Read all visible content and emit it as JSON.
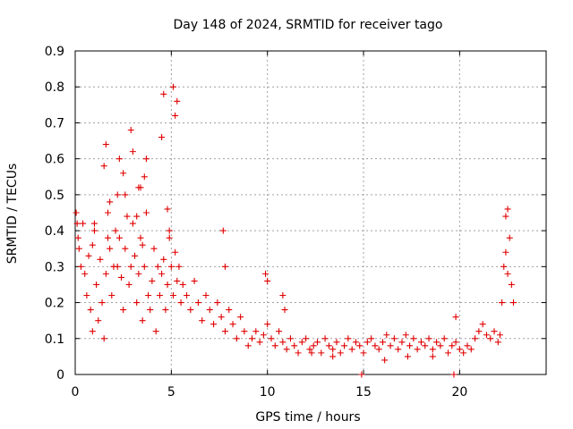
{
  "chart_data": {
    "type": "scatter",
    "title": "Day 148 of 2024, SRMTID for receiver tago",
    "xlabel": "GPS time / hours",
    "ylabel": "SRMTID / TECUs",
    "xlim": [
      0,
      24.5
    ],
    "ylim": [
      0,
      0.9
    ],
    "xticks": [
      0,
      5,
      10,
      15,
      20
    ],
    "yticks": [
      0,
      0.1,
      0.2,
      0.3,
      0.4,
      0.5,
      0.6,
      0.7,
      0.8,
      0.9
    ],
    "grid": true,
    "marker": "+",
    "color": "#e00000",
    "series": [
      {
        "name": "SRMTID",
        "x": [
          0.05,
          0.1,
          0.15,
          0.2,
          0.3,
          0.4,
          0.5,
          0.6,
          0.7,
          0.8,
          0.9,
          1.0,
          1.1,
          1.2,
          1.3,
          1.4,
          1.5,
          1.6,
          1.7,
          1.8,
          1.9,
          2.0,
          2.1,
          2.2,
          2.3,
          2.4,
          2.5,
          2.6,
          2.7,
          2.8,
          2.9,
          3.0,
          3.1,
          3.2,
          3.3,
          3.4,
          3.5,
          3.6,
          3.7,
          3.8,
          3.9,
          4.0,
          4.1,
          4.2,
          4.3,
          4.4,
          4.5,
          4.6,
          4.7,
          4.8,
          4.9,
          5.0,
          5.1,
          5.2,
          5.3,
          5.4,
          5.5,
          5.6,
          5.8,
          6.0,
          6.2,
          6.4,
          6.6,
          6.8,
          7.0,
          7.2,
          7.4,
          7.6,
          7.8,
          8.0,
          8.2,
          8.4,
          8.6,
          8.8,
          9.0,
          9.2,
          9.4,
          9.6,
          9.8,
          10.0,
          10.2,
          10.4,
          10.6,
          10.8,
          11.0,
          11.2,
          11.4,
          11.6,
          11.8,
          12.0,
          12.2,
          12.4,
          12.6,
          12.8,
          13.0,
          13.2,
          13.4,
          13.6,
          13.8,
          14.0,
          14.2,
          14.4,
          14.6,
          14.8,
          15.0,
          15.2,
          15.4,
          15.6,
          15.8,
          16.0,
          16.2,
          16.4,
          16.6,
          16.8,
          17.0,
          17.2,
          17.4,
          17.6,
          17.8,
          18.0,
          18.2,
          18.4,
          18.6,
          18.8,
          19.0,
          19.2,
          19.4,
          19.6,
          19.8,
          20.0,
          20.2,
          20.4,
          20.6,
          20.8,
          21.0,
          21.2,
          21.4,
          21.6,
          21.8,
          22.0,
          22.1,
          22.2,
          22.3,
          22.4,
          22.5,
          22.6,
          22.7,
          22.8,
          2.2,
          2.3,
          2.9,
          3.0,
          3.6,
          3.7,
          4.5,
          4.6,
          5.1,
          5.2,
          5.3,
          1.5,
          1.6,
          2.5,
          2.6,
          3.2,
          3.3,
          4.8,
          4.9,
          0.9,
          1.0,
          1.7,
          1.8,
          3.4,
          3.5,
          7.7,
          7.8,
          9.9,
          10.0,
          10.8,
          10.9,
          19.8,
          22.4,
          22.5,
          12.3,
          13.4,
          16.1,
          17.3,
          18.6,
          14.9,
          19.7
        ],
        "y": [
          0.45,
          0.42,
          0.38,
          0.35,
          0.3,
          0.42,
          0.28,
          0.22,
          0.33,
          0.18,
          0.12,
          0.4,
          0.25,
          0.15,
          0.32,
          0.2,
          0.1,
          0.28,
          0.45,
          0.35,
          0.22,
          0.3,
          0.4,
          0.5,
          0.38,
          0.27,
          0.18,
          0.35,
          0.44,
          0.25,
          0.3,
          0.42,
          0.33,
          0.2,
          0.28,
          0.38,
          0.15,
          0.3,
          0.45,
          0.22,
          0.18,
          0.26,
          0.35,
          0.12,
          0.3,
          0.22,
          0.28,
          0.32,
          0.18,
          0.25,
          0.38,
          0.3,
          0.22,
          0.34,
          0.26,
          0.3,
          0.2,
          0.25,
          0.22,
          0.18,
          0.26,
          0.2,
          0.15,
          0.22,
          0.18,
          0.14,
          0.2,
          0.16,
          0.12,
          0.18,
          0.14,
          0.1,
          0.16,
          0.12,
          0.08,
          0.1,
          0.12,
          0.09,
          0.11,
          0.14,
          0.1,
          0.08,
          0.12,
          0.09,
          0.07,
          0.1,
          0.08,
          0.06,
          0.09,
          0.1,
          0.07,
          0.08,
          0.09,
          0.06,
          0.1,
          0.08,
          0.07,
          0.09,
          0.06,
          0.08,
          0.1,
          0.07,
          0.09,
          0.08,
          0.06,
          0.09,
          0.1,
          0.08,
          0.07,
          0.09,
          0.11,
          0.08,
          0.1,
          0.07,
          0.09,
          0.11,
          0.08,
          0.1,
          0.07,
          0.09,
          0.08,
          0.1,
          0.07,
          0.09,
          0.08,
          0.1,
          0.06,
          0.08,
          0.09,
          0.07,
          0.06,
          0.08,
          0.07,
          0.1,
          0.12,
          0.14,
          0.11,
          0.1,
          0.12,
          0.09,
          0.11,
          0.2,
          0.3,
          0.34,
          0.28,
          0.38,
          0.25,
          0.2,
          0.3,
          0.6,
          0.68,
          0.62,
          0.55,
          0.6,
          0.66,
          0.78,
          0.8,
          0.72,
          0.76,
          0.58,
          0.64,
          0.56,
          0.5,
          0.44,
          0.52,
          0.46,
          0.4,
          0.36,
          0.42,
          0.38,
          0.48,
          0.52,
          0.36,
          0.4,
          0.3,
          0.28,
          0.26,
          0.22,
          0.18,
          0.16,
          0.44,
          0.46,
          0.06,
          0.05,
          0.04,
          0.05,
          0.05,
          0,
          0
        ]
      }
    ]
  }
}
